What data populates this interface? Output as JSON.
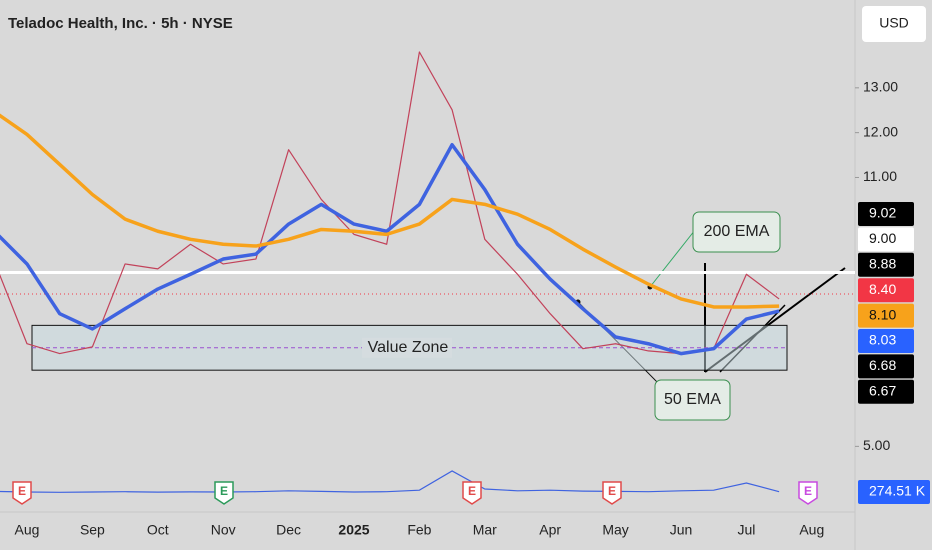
{
  "chart_data": {
    "type": "line",
    "title": "Teladoc Health, Inc. · 5h · NYSE",
    "currency": "USD",
    "categories": [
      null,
      "Aug",
      null,
      "Sep",
      null,
      "Oct",
      null,
      "Nov",
      null,
      "Dec",
      null,
      "2025",
      null,
      "Feb",
      null,
      "Mar",
      null,
      "Apr",
      null,
      "May",
      null,
      "Jun",
      null,
      "Jul",
      null,
      "Aug"
    ],
    "series": [
      {
        "name": "Price",
        "color": "#c2425a",
        "values": [
          9.13,
          7.29,
          7.07,
          7.22,
          9.07,
          8.96,
          9.51,
          9.07,
          9.18,
          11.62,
          10.51,
          9.73,
          9.51,
          13.8,
          12.51,
          9.62,
          8.84,
          7.96,
          7.18,
          7.29,
          7.13,
          7.07,
          7.18,
          8.84,
          8.29,
          null
        ]
      },
      {
        "name": "50 EMA",
        "color": "#3f63e0",
        "values": [
          9.8,
          9.07,
          7.96,
          7.62,
          8.07,
          8.51,
          8.84,
          9.18,
          9.29,
          9.96,
          10.4,
          9.96,
          9.8,
          10.4,
          11.73,
          10.73,
          9.51,
          8.73,
          8.07,
          7.44,
          7.29,
          7.07,
          7.18,
          7.84,
          8.02,
          null
        ]
      },
      {
        "name": "200 EMA",
        "color": "#f7a21b",
        "values": [
          12.47,
          11.96,
          11.29,
          10.62,
          10.07,
          9.8,
          9.62,
          9.51,
          9.47,
          9.62,
          9.84,
          9.8,
          9.73,
          9.96,
          10.51,
          10.4,
          10.18,
          9.84,
          9.4,
          9.0,
          8.62,
          8.29,
          8.11,
          8.11,
          8.13,
          null
        ]
      }
    ],
    "volume": {
      "label": "274.51 K",
      "color": "#3f63e0",
      "values": [
        280,
        270,
        265,
        270,
        275,
        268,
        272,
        270,
        275,
        290,
        280,
        270,
        275,
        300,
        620,
        320,
        290,
        300,
        285,
        280,
        275,
        290,
        300,
        420,
        275,
        null
      ]
    },
    "ylim": [
      3.58,
      14.96
    ],
    "yticks": [
      {
        "value": 5,
        "label": "5.00"
      },
      {
        "value": 11,
        "label": "11.00"
      },
      {
        "value": 12,
        "label": "12.00"
      },
      {
        "value": 13,
        "label": "13.00"
      }
    ],
    "horizontal_line": {
      "value": 8.88,
      "color": "#ffffff"
    },
    "last_price_line": {
      "value": 8.4,
      "color": "#f23645"
    },
    "value_zone": {
      "label": "Value Zone",
      "range": [
        6.7,
        7.7
      ]
    },
    "price_labels": [
      {
        "value": 9.02,
        "label": "9.02",
        "color": "#000000"
      },
      {
        "value": 9.0,
        "label": "9.00",
        "color": "#ffffff"
      },
      {
        "value": 8.88,
        "label": "8.88",
        "color": "#000000"
      },
      {
        "value": 8.4,
        "label": "8.40",
        "color": "#f23645"
      },
      {
        "value": 8.1,
        "label": "8.10",
        "color": "#f7a21b"
      },
      {
        "value": 8.03,
        "label": "8.03",
        "color": "#2962ff"
      },
      {
        "value": 6.68,
        "label": "6.68",
        "color": "#000000"
      },
      {
        "value": 6.67,
        "label": "6.67",
        "color": "#000000"
      }
    ],
    "annotations": [
      "200 EMA",
      "50 EMA"
    ],
    "earnings_markers": [
      "E",
      "E",
      "E",
      "E",
      "E"
    ]
  }
}
